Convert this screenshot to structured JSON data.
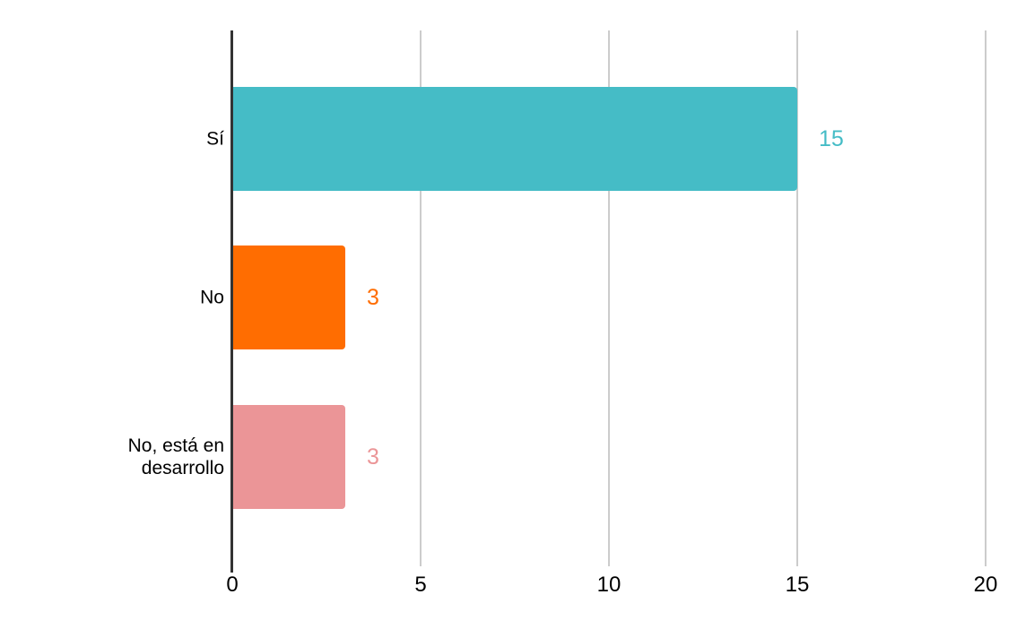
{
  "chart_data": {
    "type": "bar",
    "orientation": "horizontal",
    "title": "",
    "xlabel": "",
    "ylabel": "",
    "categories": [
      "Sí",
      "No",
      "No, está en desarrollo"
    ],
    "values": [
      15,
      3,
      3
    ],
    "bar_colors": [
      "#45BCC6",
      "#FF6D01",
      "#EB9597"
    ],
    "value_label_colors": [
      "#45BCC6",
      "#FF6D01",
      "#EB9597"
    ],
    "x_ticks": [
      0,
      5,
      10,
      15,
      20
    ],
    "xlim": [
      0,
      20
    ],
    "grid": true,
    "legend_position": "none",
    "gridline_color": "#cccccc",
    "axis_color": "#333333",
    "text_color": "#000000",
    "background_color": "#ffffff"
  }
}
